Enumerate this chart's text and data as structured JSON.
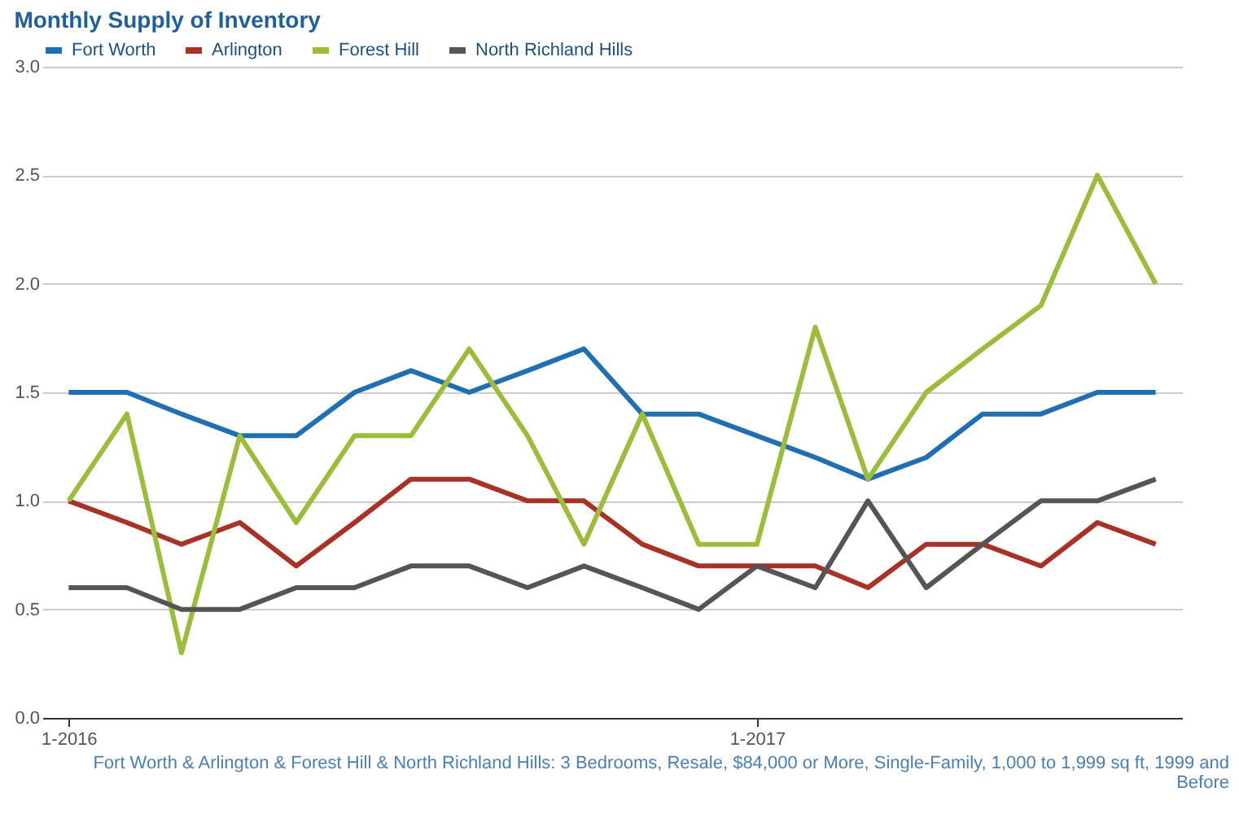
{
  "chart_data": {
    "type": "line",
    "title": "Monthly Supply of Inventory",
    "x": [
      "2016-01",
      "2016-02",
      "2016-03",
      "2016-04",
      "2016-05",
      "2016-06",
      "2016-07",
      "2016-08",
      "2016-09",
      "2016-10",
      "2016-11",
      "2016-12",
      "2017-01",
      "2017-02",
      "2017-03",
      "2017-04",
      "2017-05",
      "2017-06",
      "2017-07",
      "2017-08"
    ],
    "series": [
      {
        "name": "Fort Worth",
        "color": "#1f6fb2",
        "values": [
          1.5,
          1.5,
          1.4,
          1.3,
          1.3,
          1.5,
          1.6,
          1.5,
          1.6,
          1.7,
          1.4,
          1.4,
          1.3,
          1.2,
          1.1,
          1.2,
          1.4,
          1.4,
          1.5,
          1.5
        ]
      },
      {
        "name": "Arlington",
        "color": "#a83226",
        "values": [
          1.0,
          0.9,
          0.8,
          0.9,
          0.7,
          0.9,
          1.1,
          1.1,
          1.0,
          1.0,
          0.8,
          0.7,
          0.7,
          0.7,
          0.6,
          0.8,
          0.8,
          0.7,
          0.9,
          0.8
        ]
      },
      {
        "name": "Forest Hill",
        "color": "#9bbd3a",
        "values": [
          1.0,
          1.4,
          0.3,
          1.3,
          0.9,
          1.3,
          1.3,
          1.7,
          1.3,
          0.8,
          1.4,
          0.8,
          0.8,
          1.8,
          1.1,
          1.5,
          1.7,
          1.9,
          2.5,
          2.0
        ]
      },
      {
        "name": "North Richland Hills",
        "color": "#555555",
        "values": [
          0.6,
          0.6,
          0.5,
          0.5,
          0.6,
          0.6,
          0.7,
          0.7,
          0.6,
          0.7,
          0.6,
          0.5,
          0.7,
          0.6,
          1.0,
          0.6,
          0.8,
          1.0,
          1.0,
          1.1
        ]
      }
    ],
    "xlim": [
      "2015-12-18",
      "2017-08-15"
    ],
    "xticks": [
      {
        "value": "2016-01",
        "label": "1-2016"
      },
      {
        "value": "2017-01",
        "label": "1-2017"
      }
    ],
    "ylim": [
      0,
      3
    ],
    "yticks": [
      {
        "value": 0,
        "label": "0.0"
      },
      {
        "value": 0.5,
        "label": "0.5"
      },
      {
        "value": 1,
        "label": "1.0"
      },
      {
        "value": 1.5,
        "label": "1.5"
      },
      {
        "value": 2,
        "label": "2.0"
      },
      {
        "value": 2.5,
        "label": "2.5"
      },
      {
        "value": 3,
        "label": "3.0"
      }
    ],
    "grid": "y",
    "legend": "top",
    "line_style": "solid",
    "annotations": [
      "Fort Worth & Arlington & Forest Hill & North Richland Hills: 3 Bedrooms, Resale, $84,000 or More, Single-Family, 1,000 to 1,999 sq ft, 1999 and Before"
    ]
  }
}
